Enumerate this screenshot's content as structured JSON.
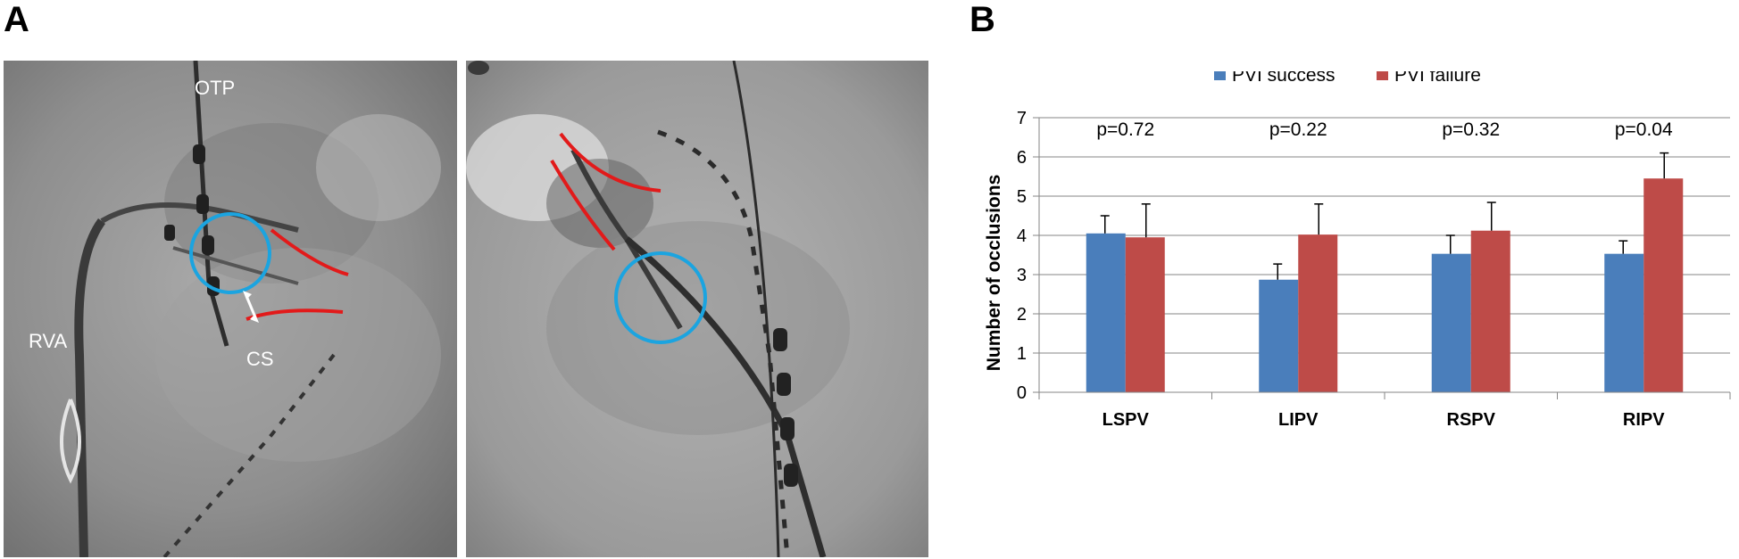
{
  "panel_labels": {
    "a": "A",
    "b": "B"
  },
  "fluoro_labels": {
    "otp": "OTP",
    "rva": "RVA",
    "cs": "CS"
  },
  "colors": {
    "success": "#4a7ebb",
    "failure": "#be4b48",
    "annotation_circle": "#1ba4e0",
    "annotation_curve": "#e21a1a"
  },
  "chart_data": {
    "type": "bar",
    "categories": [
      "LSPV",
      "LIPV",
      "RSPV",
      "RIPV"
    ],
    "series": [
      {
        "name": "PVI success",
        "values": [
          4.05,
          2.87,
          3.53,
          3.53
        ],
        "errors": [
          0.45,
          0.4,
          0.47,
          0.33
        ]
      },
      {
        "name": "PVI failure",
        "values": [
          3.95,
          4.02,
          4.12,
          5.45
        ],
        "errors": [
          0.85,
          0.78,
          0.72,
          0.65
        ]
      }
    ],
    "pvalues": [
      "p=0.72",
      "p=0.22",
      "p=0.32",
      "p=0.04"
    ],
    "ylabel": "Number of occlusions",
    "xlabel": "",
    "ylim": [
      0,
      7
    ],
    "yticks": [
      "0",
      "1",
      "2",
      "3",
      "4",
      "5",
      "6",
      "7"
    ],
    "grid": true,
    "legend_position": "top"
  }
}
